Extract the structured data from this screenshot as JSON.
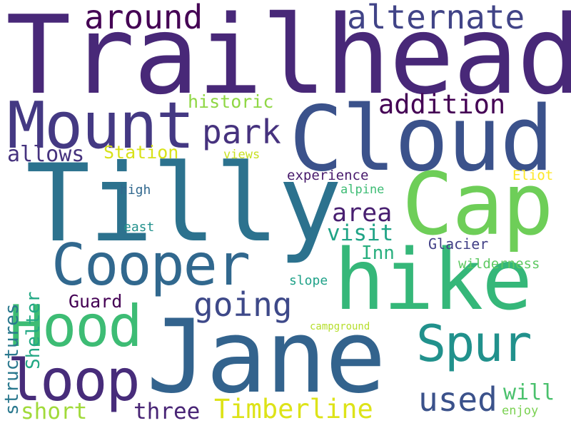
{
  "words": {
    "trailhead": {
      "text": "Trailhead",
      "color": "#482878"
    },
    "tilly": {
      "text": "Tilly",
      "color": "#2c728e"
    },
    "jane": {
      "text": "Jane",
      "color": "#33638d"
    },
    "cloud": {
      "text": "Cloud",
      "color": "#3b528b"
    },
    "cap": {
      "text": "Cap",
      "color": "#6ece58"
    },
    "hike": {
      "text": "hike",
      "color": "#35b779"
    },
    "mount": {
      "text": "Mount",
      "color": "#443983"
    },
    "cooper": {
      "text": "Cooper",
      "color": "#31688e"
    },
    "hood": {
      "text": "Hood",
      "color": "#3dbc74"
    },
    "loop": {
      "text": "loop",
      "color": "#472c7a"
    },
    "spur": {
      "text": "Spur",
      "color": "#21918c"
    },
    "around": {
      "text": "around",
      "color": "#440154"
    },
    "alternate": {
      "text": "alternate",
      "color": "#414487"
    },
    "park": {
      "text": "park",
      "color": "#46327e"
    },
    "going": {
      "text": "going",
      "color": "#3e4989"
    },
    "used": {
      "text": "used",
      "color": "#3b528b"
    },
    "addition": {
      "text": "addition",
      "color": "#440154"
    },
    "timberline": {
      "text": "Timberline",
      "color": "#dde318"
    },
    "area": {
      "text": "area",
      "color": "#481f70"
    },
    "visit": {
      "text": "visit",
      "color": "#20a486"
    },
    "short": {
      "text": "short",
      "color": "#a0da39"
    },
    "three": {
      "text": "three",
      "color": "#482475"
    },
    "allows": {
      "text": "allows",
      "color": "#46337e"
    },
    "inn": {
      "text": "Inn",
      "color": "#29af7f"
    },
    "will": {
      "text": "will",
      "color": "#4ac16d"
    },
    "station": {
      "text": "Station",
      "color": "#d8e219"
    },
    "historic": {
      "text": "historic",
      "color": "#8fd744"
    },
    "guard": {
      "text": "Guard",
      "color": "#440154"
    },
    "glacier": {
      "text": "Glacier",
      "color": "#424086"
    },
    "experience": {
      "text": "experience",
      "color": "#481a6c"
    },
    "eliot": {
      "text": "Eliot",
      "color": "#fde725"
    },
    "high": {
      "text": "high",
      "color": "#31688e"
    },
    "alpine": {
      "text": "alpine",
      "color": "#3dbc74"
    },
    "east": {
      "text": "east",
      "color": "#21918c"
    },
    "wilderness": {
      "text": "wilderness",
      "color": "#5ec962"
    },
    "slope": {
      "text": "slope",
      "color": "#1fa188"
    },
    "views": {
      "text": "views",
      "color": "#c8e020"
    },
    "enjoy": {
      "text": "enjoy",
      "color": "#7ad151"
    },
    "campground": {
      "text": "campground",
      "color": "#b5de2b"
    },
    "structures": {
      "text": "structures",
      "color": "#2a788e"
    },
    "shelter": {
      "text": "Shelter",
      "color": "#22a884"
    }
  }
}
